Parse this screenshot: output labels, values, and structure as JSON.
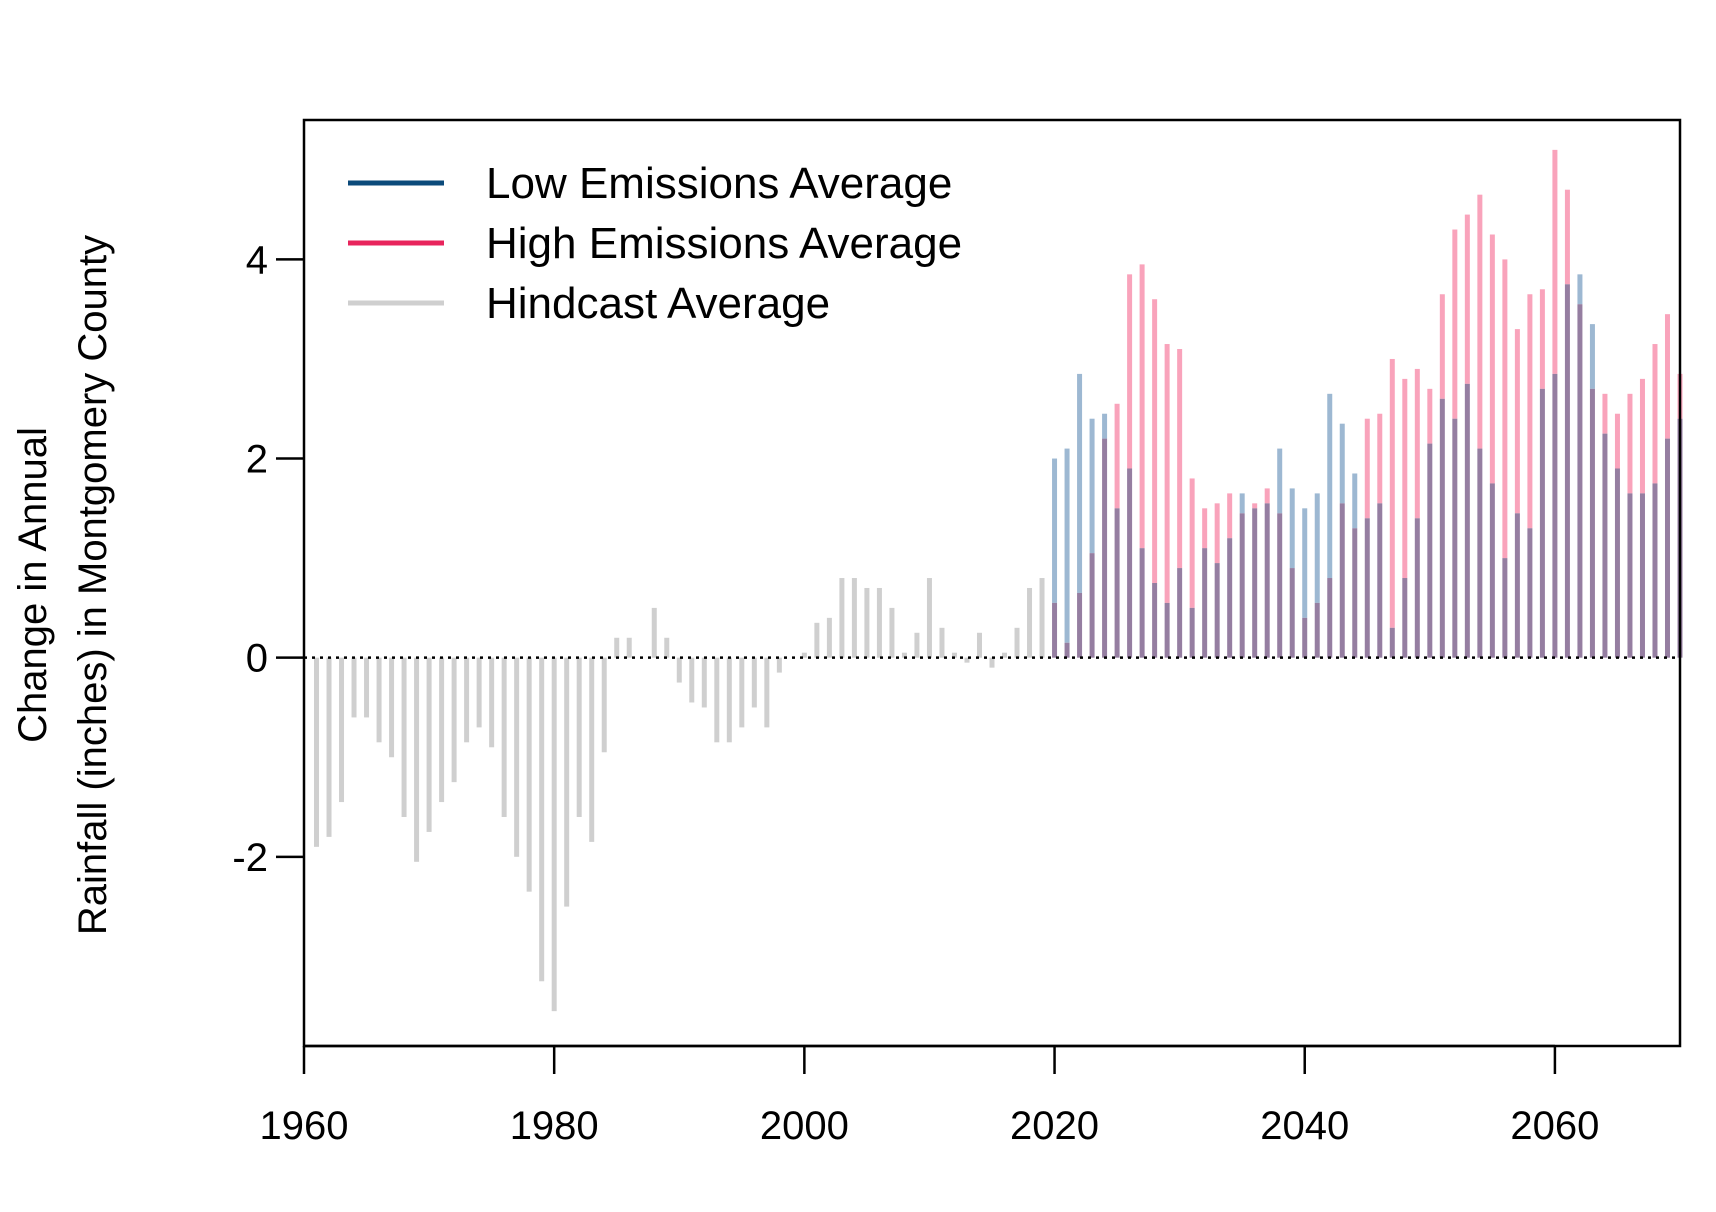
{
  "chart_data": {
    "type": "bar",
    "title": "",
    "xlabel": "",
    "ylabel_lines": [
      "Change in Annual",
      "Rainfall (inches) in Montgomery County"
    ],
    "xlim": [
      1960,
      2070
    ],
    "ylim": [
      -3.9,
      5.4
    ],
    "x_ticks": [
      1960,
      1980,
      2000,
      2020,
      2040,
      2060
    ],
    "y_ticks": [
      -2,
      0,
      2,
      4
    ],
    "grid": false,
    "legend_position": "top-left",
    "zero_line": true,
    "series": [
      {
        "name": "Low Emissions Average",
        "legend_color": "#0b4a7a",
        "bar_color": "#9db8d2",
        "x": [
          2020,
          2021,
          2022,
          2023,
          2024,
          2025,
          2026,
          2027,
          2028,
          2029,
          2030,
          2031,
          2032,
          2033,
          2034,
          2035,
          2036,
          2037,
          2038,
          2039,
          2040,
          2041,
          2042,
          2043,
          2044,
          2045,
          2046,
          2047,
          2048,
          2049,
          2050,
          2051,
          2052,
          2053,
          2054,
          2055,
          2056,
          2057,
          2058,
          2059,
          2060,
          2061,
          2062,
          2063,
          2064,
          2065,
          2066,
          2067,
          2068,
          2069,
          2070
        ],
        "values": [
          2.0,
          2.1,
          2.85,
          2.4,
          2.45,
          1.5,
          1.9,
          1.1,
          0.75,
          0.55,
          0.9,
          0.5,
          1.1,
          0.95,
          1.2,
          1.65,
          1.5,
          1.55,
          2.1,
          1.7,
          1.5,
          1.65,
          2.65,
          2.35,
          1.85,
          1.4,
          1.55,
          0.3,
          0.8,
          1.4,
          2.15,
          2.6,
          2.4,
          2.75,
          2.1,
          1.75,
          1.0,
          1.45,
          1.3,
          2.7,
          2.85,
          3.75,
          3.85,
          3.35,
          2.25,
          1.9,
          1.65,
          1.65,
          1.75,
          2.2,
          2.4
        ]
      },
      {
        "name": "High Emissions Average",
        "legend_color": "#e8245c",
        "bar_color": "#f9a3bb",
        "x": [
          2020,
          2021,
          2022,
          2023,
          2024,
          2025,
          2026,
          2027,
          2028,
          2029,
          2030,
          2031,
          2032,
          2033,
          2034,
          2035,
          2036,
          2037,
          2038,
          2039,
          2040,
          2041,
          2042,
          2043,
          2044,
          2045,
          2046,
          2047,
          2048,
          2049,
          2050,
          2051,
          2052,
          2053,
          2054,
          2055,
          2056,
          2057,
          2058,
          2059,
          2060,
          2061,
          2062,
          2063,
          2064,
          2065,
          2066,
          2067,
          2068,
          2069,
          2070
        ],
        "values": [
          0.55,
          0.15,
          0.65,
          1.05,
          2.2,
          2.55,
          3.85,
          3.95,
          3.6,
          3.15,
          3.1,
          1.8,
          1.5,
          1.55,
          1.65,
          1.45,
          1.55,
          1.7,
          1.45,
          0.9,
          0.4,
          0.55,
          0.8,
          1.55,
          1.3,
          2.4,
          2.45,
          3.0,
          2.8,
          2.9,
          2.7,
          3.65,
          4.3,
          4.45,
          4.65,
          4.25,
          4.0,
          3.3,
          3.65,
          3.7,
          5.1,
          4.7,
          3.55,
          2.7,
          2.65,
          2.45,
          2.65,
          2.8,
          3.15,
          3.45,
          2.85
        ]
      },
      {
        "name": "Hindcast Average",
        "legend_color": "#cfcfcf",
        "bar_color": "#cfcfcf",
        "x": [
          1961,
          1962,
          1963,
          1964,
          1965,
          1966,
          1967,
          1968,
          1969,
          1970,
          1971,
          1972,
          1973,
          1974,
          1975,
          1976,
          1977,
          1978,
          1979,
          1980,
          1981,
          1982,
          1983,
          1984,
          1985,
          1986,
          1987,
          1988,
          1989,
          1990,
          1991,
          1992,
          1993,
          1994,
          1995,
          1996,
          1997,
          1998,
          1999,
          2000,
          2001,
          2002,
          2003,
          2004,
          2005,
          2006,
          2007,
          2008,
          2009,
          2010,
          2011,
          2012,
          2013,
          2014,
          2015,
          2016,
          2017,
          2018,
          2019
        ],
        "values": [
          -1.9,
          -1.8,
          -1.45,
          -0.6,
          -0.6,
          -0.85,
          -1.0,
          -1.6,
          -2.05,
          -1.75,
          -1.45,
          -1.25,
          -0.85,
          -0.7,
          -0.9,
          -1.6,
          -2.0,
          -2.35,
          -3.25,
          -3.55,
          -2.5,
          -1.6,
          -1.85,
          -0.95,
          0.2,
          0.2,
          0.0,
          0.5,
          0.2,
          -0.25,
          -0.45,
          -0.5,
          -0.85,
          -0.85,
          -0.7,
          -0.5,
          -0.7,
          -0.15,
          0.0,
          0.05,
          0.35,
          0.4,
          0.8,
          0.8,
          0.7,
          0.7,
          0.5,
          0.05,
          0.25,
          0.8,
          0.3,
          0.05,
          -0.05,
          0.25,
          -0.1,
          0.05,
          0.3,
          0.7,
          0.8
        ]
      }
    ],
    "overlap_color": "#957ea1"
  }
}
